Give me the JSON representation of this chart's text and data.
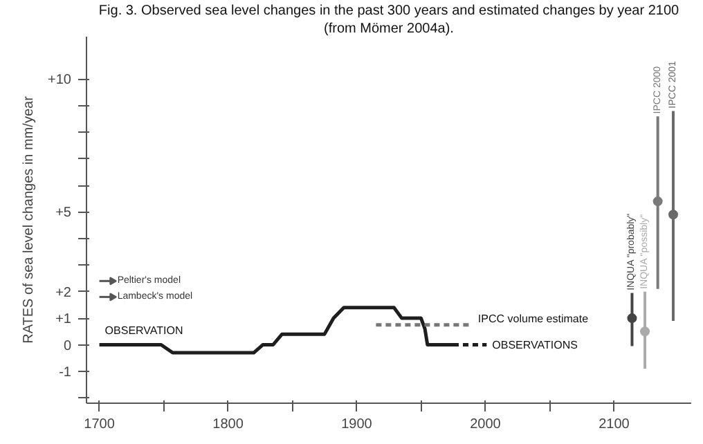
{
  "chart_data": {
    "type": "line",
    "title": "Fig. 3. Observed sea level changes in the past 300 years and estimated changes by year 2100",
    "subtitle": "(from Mömer 2004a).",
    "ylabel": "RATES of sea level changes in mm/year",
    "xlim": [
      1690,
      2160
    ],
    "ylim": [
      -2.2,
      11.6
    ],
    "xticks": [
      1700,
      {
        "value": 1750,
        "label": null
      },
      1800,
      {
        "value": 1850,
        "label": null
      },
      1900,
      {
        "value": 1950,
        "label": null
      },
      2000,
      {
        "value": 2050,
        "label": null
      },
      2100
    ],
    "yticks": [
      {
        "value": -2,
        "label": null
      },
      -1,
      0,
      {
        "value": 1,
        "label": "+1"
      },
      {
        "value": 2,
        "label": "+2"
      },
      {
        "value": 3,
        "label": null
      },
      {
        "value": 4,
        "label": null
      },
      {
        "value": 5,
        "label": "+5"
      },
      {
        "value": 6,
        "label": null
      },
      {
        "value": 7,
        "label": null
      },
      {
        "value": 8,
        "label": null
      },
      {
        "value": 9,
        "label": null
      },
      {
        "value": 10,
        "label": "+10"
      }
    ],
    "series": [
      {
        "color": "#1e1e1e",
        "line_style": "solid",
        "x": [
          1700,
          1748,
          1757,
          1820,
          1827,
          1835,
          1842,
          1875,
          1882,
          1890,
          1929,
          1935,
          1950,
          1953,
          1955,
          1975
        ],
        "values": [
          0,
          0,
          -0.3,
          -0.3,
          0,
          0,
          0.4,
          0.4,
          1.0,
          1.4,
          1.4,
          1.0,
          1.0,
          0.6,
          0,
          0
        ]
      },
      {
        "color": "#1e1e1e",
        "line_style": "dashed",
        "x": [
          1975,
          2001
        ],
        "values": [
          0,
          0
        ]
      },
      {
        "color": "#777777",
        "line_style": "dashed",
        "x": [
          1915,
          1990
        ],
        "values": [
          0.75,
          0.75
        ]
      },
      {
        "type": "scatter",
        "name": "INQUA \"probably\"",
        "color": "#444444",
        "x": [
          2114
        ],
        "values": [
          1.0
        ],
        "errors": [
          [
            -0.05,
            1.95
          ]
        ]
      },
      {
        "type": "scatter",
        "name": "INQUA \"possibly\"",
        "color": "#aaaaaa",
        "x": [
          2124
        ],
        "values": [
          0.5
        ],
        "errors": [
          [
            -0.9,
            2.0
          ]
        ]
      },
      {
        "type": "scatter",
        "name": "IPCC 2000",
        "color": "#7a7a7a",
        "x": [
          2134
        ],
        "values": [
          5.4
        ],
        "errors": [
          [
            2.1,
            8.6
          ]
        ]
      },
      {
        "type": "scatter",
        "name": "IPCC 2001",
        "color": "#6a6a6a",
        "x": [
          2146
        ],
        "values": [
          4.9
        ],
        "errors": [
          [
            0.9,
            8.8
          ]
        ]
      }
    ],
    "annotations": [
      {
        "text": "OBSERVATION",
        "x": 1700,
        "y": 0.3
      },
      {
        "text": "IPCC volume estimate",
        "x": 1990,
        "y": 0.75
      },
      {
        "text": "OBSERVATIONS",
        "x": 2001,
        "y": 0
      },
      "Peltier's model",
      "Lambeck's model"
    ]
  }
}
